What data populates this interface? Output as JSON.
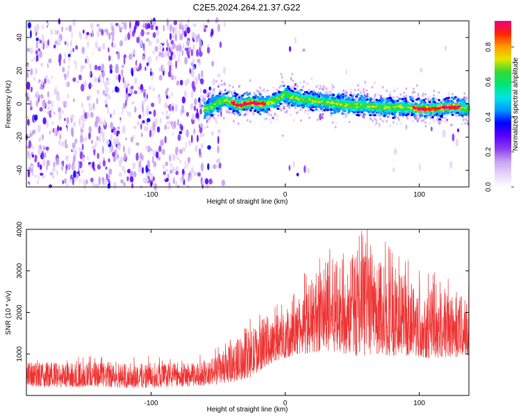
{
  "title": "C2E5.2024.264.21.37.G22",
  "colors": {
    "snr_line": "#ee3333",
    "colormap": [
      "#ffffff",
      "#e6d5fa",
      "#c8a2f0",
      "#8a3cf0",
      "#5a00ff",
      "#0000ff",
      "#0099ff",
      "#00e5e5",
      "#00e57a",
      "#33d933",
      "#e5e500",
      "#ff9900",
      "#ff2200",
      "#ee0088"
    ]
  },
  "chart_data": [
    {
      "type": "heatmap",
      "xlabel": "Height of straight line (km)",
      "ylabel": "Frequency (Hz)",
      "xlim": [
        -193,
        137
      ],
      "ylim": [
        -50,
        50
      ],
      "xticks": [
        -100,
        0,
        100
      ],
      "yticks": [
        -40,
        -20,
        0,
        20,
        40
      ],
      "ridge": {
        "description_x": [
          -60,
          -55,
          -50,
          -45,
          -40,
          -35,
          -30,
          -25,
          -20,
          -15,
          -10,
          -5,
          0,
          5,
          10,
          20,
          30,
          40,
          50,
          60,
          70,
          80,
          90,
          100,
          110,
          120,
          130,
          137
        ],
        "frequency": [
          -3,
          -2,
          1,
          2,
          1,
          -1,
          0,
          1,
          0,
          0,
          1,
          3,
          6,
          4,
          3,
          2,
          1,
          0,
          -1,
          -1,
          -2,
          -2,
          -2,
          -3,
          -3,
          -2,
          -2,
          -3
        ]
      },
      "colorbar": {
        "label": "Normalized spectral amplitude",
        "range": [
          0,
          0.95
        ],
        "ticks": [
          0.0,
          0.2,
          0.4,
          0.6,
          0.8
        ]
      }
    },
    {
      "type": "line",
      "xlabel": "Height of straight line (km)",
      "ylabel": "SNR (10 * v/v)",
      "xlim": [
        -193,
        137
      ],
      "ylim": [
        0,
        4000
      ],
      "xticks": [
        -100,
        0,
        100
      ],
      "yticks": [
        1000,
        2000,
        3000,
        4000
      ],
      "series": [
        {
          "x": [
            -193,
            -150,
            -110,
            -70,
            -55,
            -45,
            -35,
            -25,
            -15,
            -5,
            5,
            15,
            25,
            35,
            45,
            55,
            65,
            75,
            85,
            95,
            105,
            115,
            125,
            137
          ],
          "y_lower": [
            200,
            200,
            180,
            220,
            250,
            300,
            350,
            450,
            700,
            850,
            950,
            1000,
            1050,
            1050,
            1000,
            950,
            950,
            950,
            950,
            950,
            900,
            900,
            900,
            900
          ],
          "y_upper": [
            800,
            800,
            800,
            780,
            900,
            1100,
            1400,
            1600,
            1900,
            1950,
            2100,
            2600,
            3100,
            3300,
            3300,
            3500,
            3400,
            3300,
            3000,
            2800,
            2700,
            2500,
            2500,
            2400
          ]
        }
      ]
    }
  ]
}
